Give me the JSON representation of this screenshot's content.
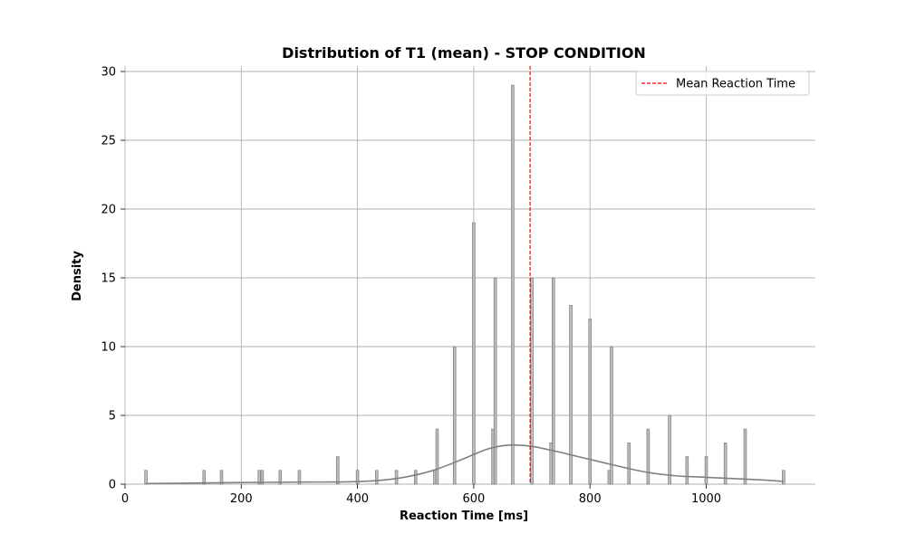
{
  "chart_data": {
    "type": "bar",
    "title": "Distribution of T1 (mean) - STOP CONDITION",
    "xlabel": "Reaction Time [ms]",
    "ylabel": "Density",
    "xlim": [
      0,
      1180
    ],
    "ylim": [
      0,
      30.4
    ],
    "xticks": [
      0,
      200,
      400,
      600,
      800,
      1000
    ],
    "yticks": [
      0,
      5,
      10,
      15,
      20,
      25,
      30
    ],
    "grid": true,
    "legend": {
      "placement": "top-right",
      "entries": [
        "Mean Reaction Time"
      ]
    },
    "colors": {
      "bars": "#c0c0c0",
      "bar_edge": "#808080",
      "kde": "#808080",
      "mean_line": "#ff0000",
      "grid": "#b0b0b0"
    },
    "bin_width": 4.3,
    "histogram": [
      {
        "x": 36,
        "count": 1
      },
      {
        "x": 136,
        "count": 1
      },
      {
        "x": 166,
        "count": 1
      },
      {
        "x": 231,
        "count": 1
      },
      {
        "x": 236,
        "count": 1
      },
      {
        "x": 267,
        "count": 1
      },
      {
        "x": 300,
        "count": 1
      },
      {
        "x": 366,
        "count": 2
      },
      {
        "x": 400,
        "count": 1
      },
      {
        "x": 433,
        "count": 1
      },
      {
        "x": 467,
        "count": 1
      },
      {
        "x": 500,
        "count": 1
      },
      {
        "x": 533,
        "count": 1
      },
      {
        "x": 537,
        "count": 4
      },
      {
        "x": 567,
        "count": 10
      },
      {
        "x": 600,
        "count": 19
      },
      {
        "x": 633,
        "count": 4
      },
      {
        "x": 637,
        "count": 15
      },
      {
        "x": 667,
        "count": 29
      },
      {
        "x": 700,
        "count": 15
      },
      {
        "x": 733,
        "count": 3
      },
      {
        "x": 737,
        "count": 15
      },
      {
        "x": 767,
        "count": 13
      },
      {
        "x": 800,
        "count": 12
      },
      {
        "x": 833,
        "count": 1
      },
      {
        "x": 837,
        "count": 10
      },
      {
        "x": 867,
        "count": 3
      },
      {
        "x": 900,
        "count": 4
      },
      {
        "x": 937,
        "count": 5
      },
      {
        "x": 967,
        "count": 2
      },
      {
        "x": 1000,
        "count": 2
      },
      {
        "x": 1033,
        "count": 3
      },
      {
        "x": 1067,
        "count": 4
      },
      {
        "x": 1133,
        "count": 1
      }
    ],
    "kde": {
      "name": "KDE",
      "x": [
        36,
        100,
        200,
        300,
        380,
        430,
        480,
        530,
        580,
        620,
        650,
        670,
        700,
        740,
        780,
        820,
        860,
        900,
        950,
        1000,
        1050,
        1100,
        1133
      ],
      "y": [
        0.05,
        0.07,
        0.12,
        0.15,
        0.17,
        0.25,
        0.5,
        1.0,
        1.8,
        2.5,
        2.8,
        2.85,
        2.75,
        2.4,
        2.0,
        1.6,
        1.2,
        0.85,
        0.6,
        0.5,
        0.4,
        0.3,
        0.2
      ]
    },
    "mean_line": {
      "name": "Mean Reaction Time",
      "x": 697
    }
  }
}
